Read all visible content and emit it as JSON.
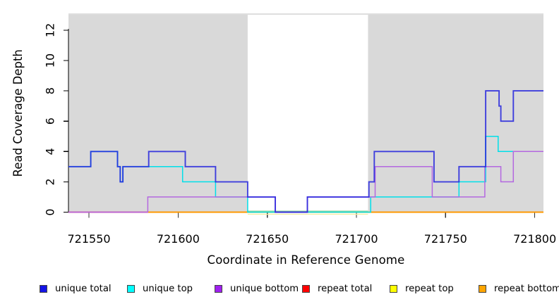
{
  "y_axis": {
    "label": "Read Coverage Depth",
    "ticks": [
      0,
      2,
      4,
      6,
      8,
      10,
      12
    ]
  },
  "x_axis": {
    "label": "Coordinate in Reference Genome",
    "ticks": [
      721550,
      721600,
      721650,
      721700,
      721750,
      721800
    ]
  },
  "legend": {
    "items": [
      {
        "label": "unique total",
        "color": "#1414e6"
      },
      {
        "label": "unique top",
        "color": "#00ffff"
      },
      {
        "label": "unique bottom",
        "color": "#a020f0"
      },
      {
        "label": "repeat total",
        "color": "#ff0000"
      },
      {
        "label": "repeat top",
        "color": "#ffff00"
      },
      {
        "label": "repeat bottom",
        "color": "#ffa500"
      }
    ]
  },
  "chart_data": {
    "type": "line",
    "subtype": "step",
    "title": "",
    "xlabel": "Coordinate in Reference Genome",
    "ylabel": "Read Coverage Depth",
    "x_range": [
      721538.5,
      721804.9
    ],
    "y_range": [
      0,
      12.7
    ],
    "grid": false,
    "shaded_regions": {
      "note": "gray = repeat-masked flanks; white window between",
      "fill": "#d9d9d9",
      "top_border": "#bcbcbc",
      "white_window": [
        721639,
        721706.5
      ]
    },
    "series": [
      {
        "name": "unique total",
        "color": "#2323dd",
        "width": 1.9,
        "opacity": 0.85,
        "steps": [
          [
            721538.5,
            3
          ],
          [
            721551,
            4
          ],
          [
            721566,
            3
          ],
          [
            721567.5,
            2
          ],
          [
            721569,
            3
          ],
          [
            721583.5,
            4
          ],
          [
            721604,
            3
          ],
          [
            721621,
            2
          ],
          [
            721639,
            1
          ],
          [
            721654.5,
            0
          ],
          [
            721672.5,
            1
          ],
          [
            721707,
            2
          ],
          [
            721710,
            4
          ],
          [
            721743.5,
            2
          ],
          [
            721757.5,
            3
          ],
          [
            721772.5,
            8
          ],
          [
            721780,
            7
          ],
          [
            721781,
            6
          ],
          [
            721788,
            8
          ],
          [
            721804.9,
            8
          ]
        ]
      },
      {
        "name": "unique top",
        "color": "#00dfe9",
        "width": 1.5,
        "opacity": 1,
        "steps": [
          [
            721538.5,
            3
          ],
          [
            721551,
            4
          ],
          [
            721566,
            3
          ],
          [
            721567.5,
            2
          ],
          [
            721569,
            3
          ],
          [
            721602.5,
            2
          ],
          [
            721621,
            1
          ],
          [
            721639,
            0
          ],
          [
            721708,
            1
          ],
          [
            721757.5,
            2
          ],
          [
            721772.5,
            5
          ],
          [
            721779.5,
            4
          ],
          [
            721804.9,
            4
          ]
        ]
      },
      {
        "name": "unique bottom",
        "color": "#b468e0",
        "width": 1.5,
        "opacity": 1,
        "steps": [
          [
            721538.5,
            0
          ],
          [
            721583,
            1
          ],
          [
            721654.5,
            0
          ],
          [
            721672.5,
            1
          ],
          [
            721710.5,
            3
          ],
          [
            721742.5,
            1
          ],
          [
            721772,
            3
          ],
          [
            721781,
            2
          ],
          [
            721788,
            4
          ],
          [
            721804.9,
            4
          ]
        ]
      },
      {
        "name": "repeat total",
        "color": "#ff0000",
        "width": 1.6,
        "opacity": 1,
        "steps": [
          [
            721538.5,
            0
          ],
          [
            721804.9,
            0
          ]
        ]
      },
      {
        "name": "repeat top",
        "color": "#ffff00",
        "width": 1.6,
        "opacity": 1,
        "steps": [
          [
            721538.5,
            0
          ],
          [
            721804.9,
            0
          ]
        ]
      },
      {
        "name": "repeat bottom",
        "color": "#ffa500",
        "width": 2.0,
        "opacity": 1,
        "steps": [
          [
            721538.5,
            0
          ],
          [
            721804.9,
            0
          ]
        ]
      }
    ],
    "zero_line_visible_segments": [
      {
        "from": 721538.5,
        "to": 721583,
        "color": "#df5178"
      },
      {
        "from": 721583,
        "to": 721639,
        "color": "#ff9800"
      },
      {
        "from": 721639,
        "to": 721706.5,
        "color": "#8fd29a"
      },
      {
        "from": 721706.5,
        "to": 721804.9,
        "color": "#ff9800"
      }
    ]
  }
}
